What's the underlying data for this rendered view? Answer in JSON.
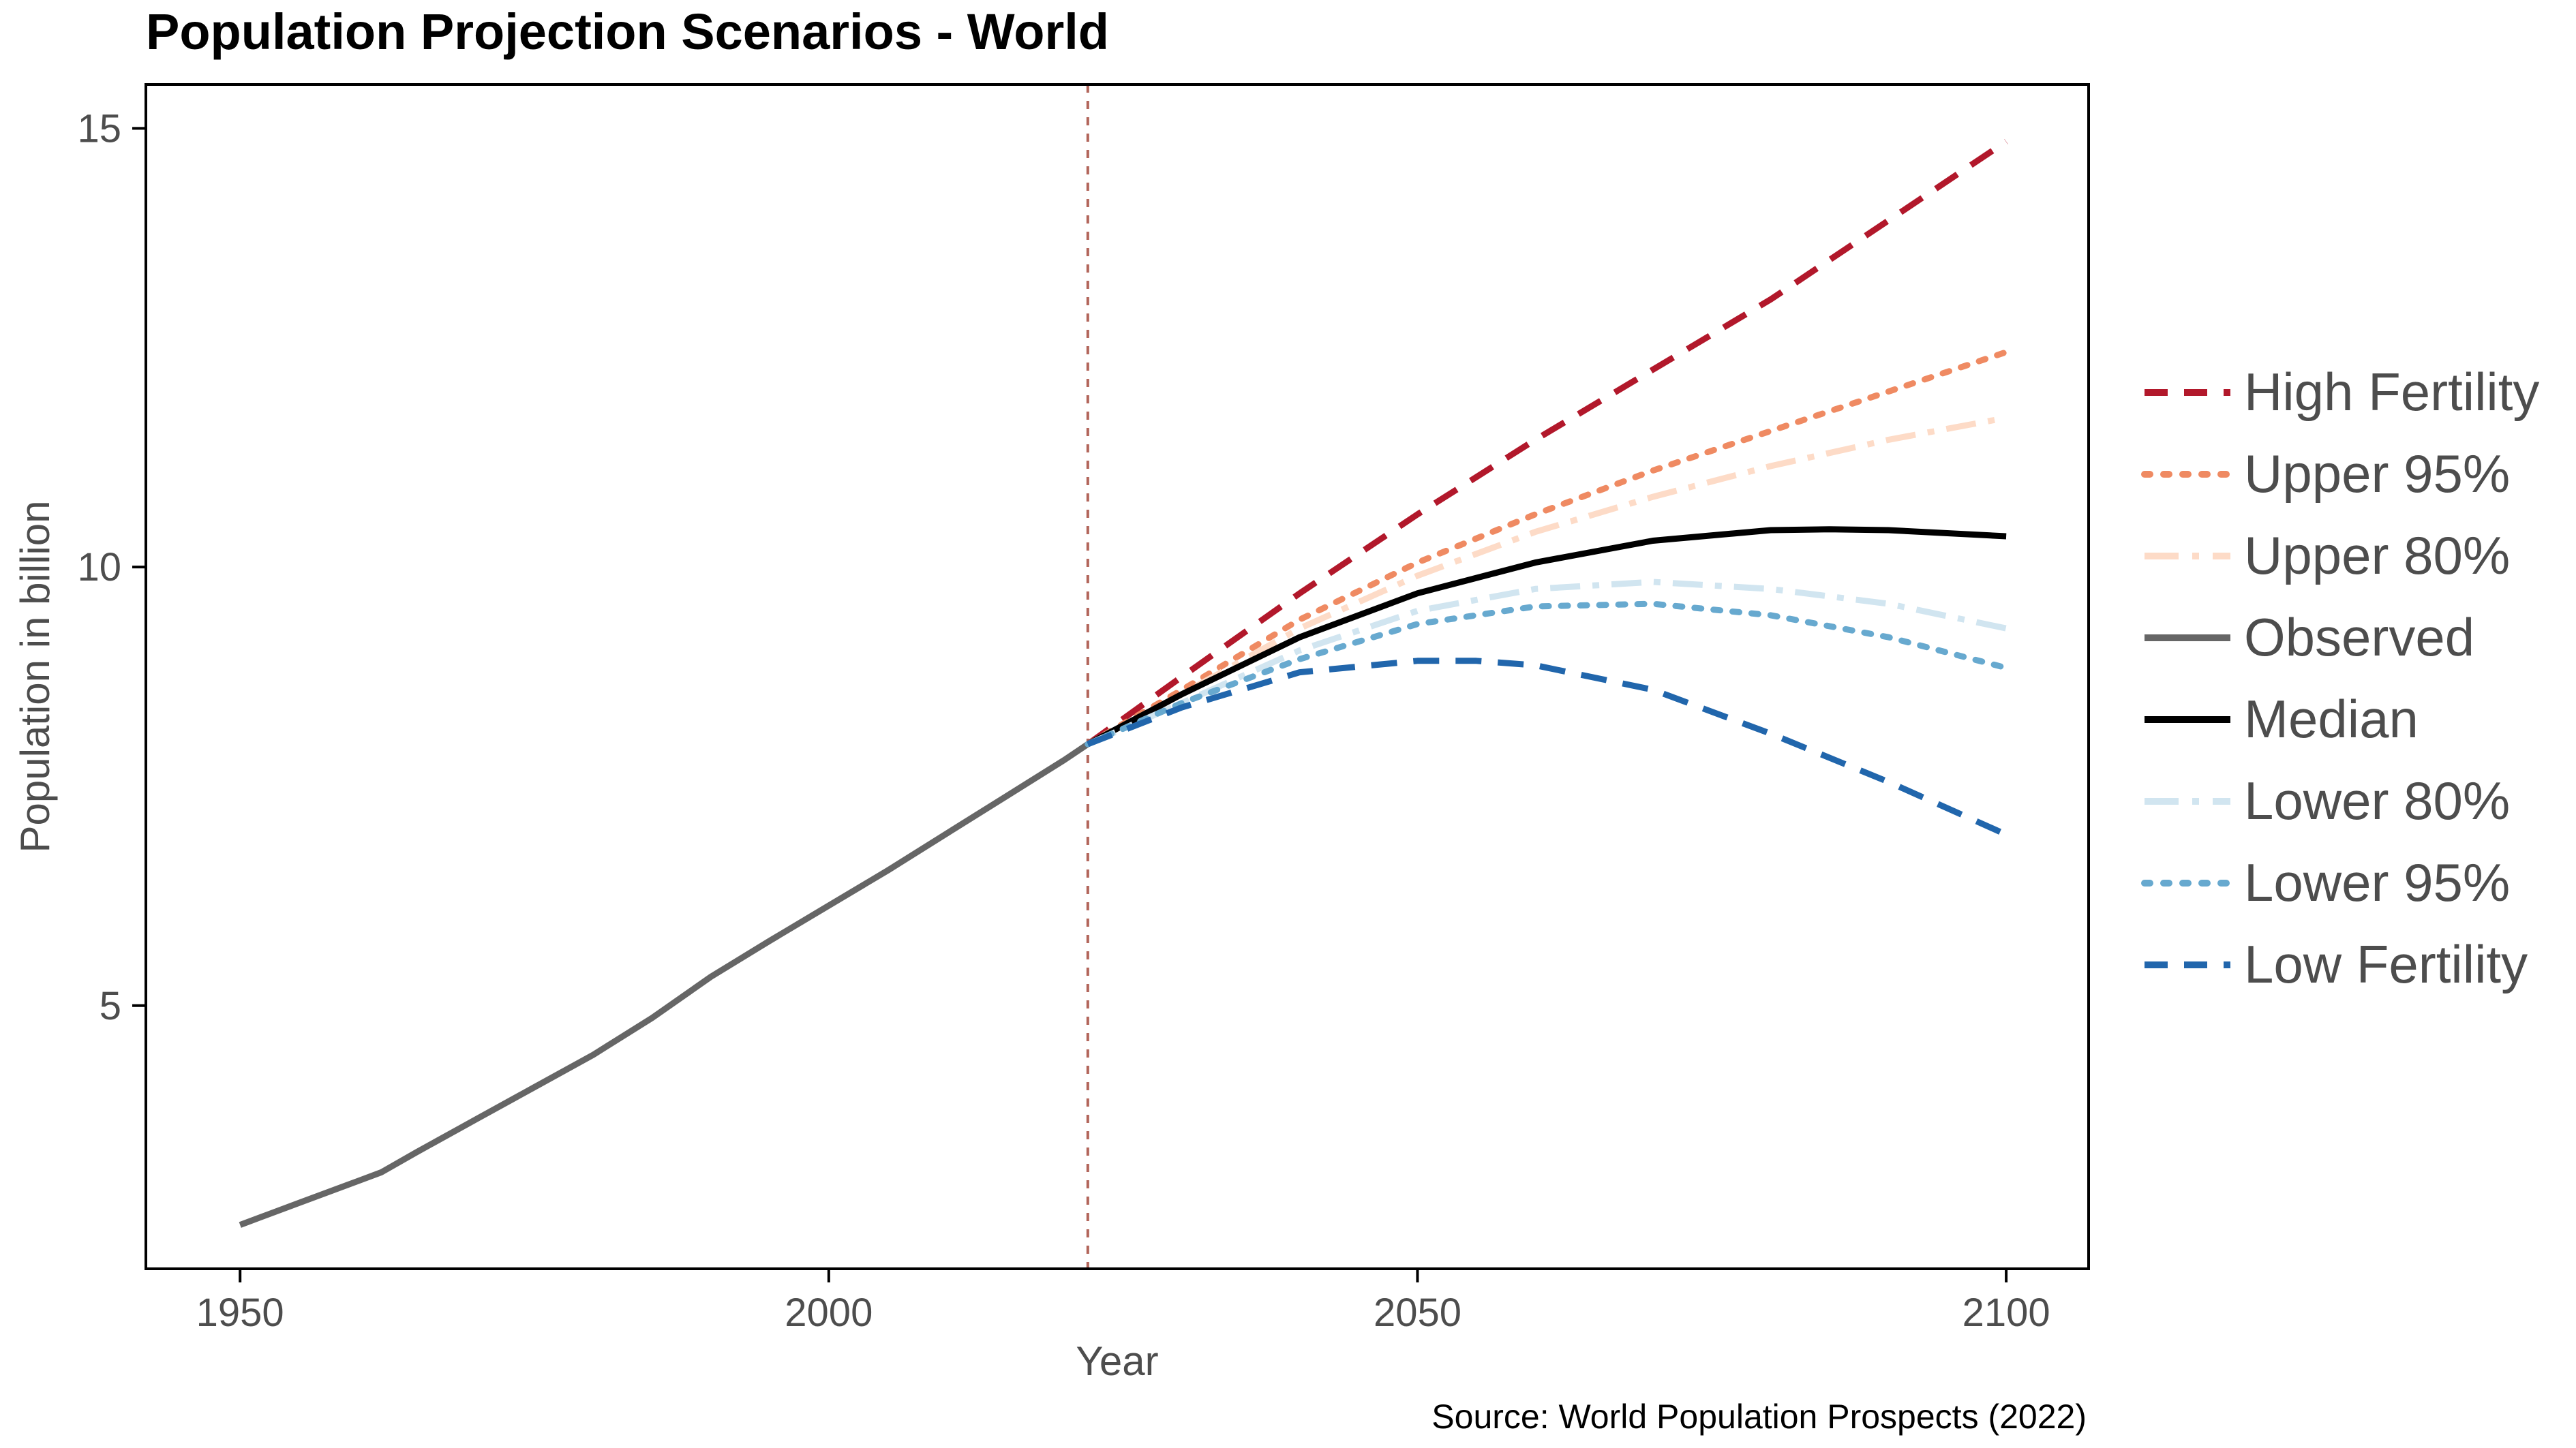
{
  "chart_data": {
    "type": "line",
    "title": "Population Projection Scenarios - World",
    "xlabel": "Year",
    "ylabel": "Population in billion",
    "xlim": [
      1942,
      2107
    ],
    "ylim": [
      2.0,
      15.5
    ],
    "xticks": [
      1950,
      2000,
      2050,
      2100
    ],
    "yticks": [
      5,
      10,
      15
    ],
    "grid": false,
    "legend_position": "right",
    "annotation": "Source: World Population Prospects (2022)",
    "reference_line": {
      "x": 2022,
      "color": "#b2655a"
    },
    "series": [
      {
        "name": "High Fertility",
        "color": "#b2182b",
        "dash": "dashed",
        "x": [
          2022,
          2030,
          2040,
          2050,
          2060,
          2070,
          2080,
          2090,
          2100
        ],
        "y": [
          7.98,
          8.75,
          9.7,
          10.6,
          11.45,
          12.25,
          13.05,
          13.95,
          14.85
        ]
      },
      {
        "name": "Upper 95%",
        "color": "#ef8a62",
        "dash": "dotted",
        "x": [
          2022,
          2030,
          2040,
          2050,
          2060,
          2070,
          2080,
          2090,
          2100
        ],
        "y": [
          7.98,
          8.6,
          9.4,
          10.05,
          10.6,
          11.1,
          11.55,
          12.0,
          12.45
        ]
      },
      {
        "name": "Upper 80%",
        "color": "#fddbc7",
        "dash": "dashdot",
        "x": [
          2022,
          2030,
          2040,
          2050,
          2060,
          2070,
          2080,
          2090,
          2100
        ],
        "y": [
          7.98,
          8.55,
          9.3,
          9.9,
          10.4,
          10.8,
          11.15,
          11.45,
          11.7
        ]
      },
      {
        "name": "Observed",
        "color": "#666666",
        "dash": "solid",
        "x": [
          1950,
          1955,
          1960,
          1962,
          1965,
          1970,
          1975,
          1980,
          1985,
          1990,
          1995,
          2000,
          2005,
          2010,
          2015,
          2020,
          2022
        ],
        "y": [
          2.5,
          2.75,
          3.0,
          3.1,
          3.33,
          3.7,
          4.07,
          4.44,
          4.86,
          5.33,
          5.74,
          6.14,
          6.54,
          6.96,
          7.38,
          7.8,
          7.98
        ]
      },
      {
        "name": "Median",
        "color": "#000000",
        "dash": "solid",
        "x": [
          2022,
          2030,
          2040,
          2050,
          2060,
          2070,
          2080,
          2085,
          2090,
          2100
        ],
        "y": [
          7.98,
          8.55,
          9.2,
          9.7,
          10.05,
          10.3,
          10.42,
          10.43,
          10.42,
          10.35
        ]
      },
      {
        "name": "Lower 80%",
        "color": "#d1e5f0",
        "dash": "dashdot",
        "x": [
          2022,
          2030,
          2040,
          2050,
          2060,
          2070,
          2080,
          2090,
          2100
        ],
        "y": [
          7.98,
          8.45,
          9.05,
          9.5,
          9.75,
          9.83,
          9.75,
          9.58,
          9.3
        ]
      },
      {
        "name": "Lower 95%",
        "color": "#67a9cf",
        "dash": "dotted",
        "x": [
          2022,
          2030,
          2040,
          2050,
          2060,
          2070,
          2080,
          2090,
          2100
        ],
        "y": [
          7.98,
          8.45,
          8.95,
          9.35,
          9.55,
          9.58,
          9.45,
          9.2,
          8.85
        ]
      },
      {
        "name": "Low Fertility",
        "color": "#2166ac",
        "dash": "dashed",
        "x": [
          2022,
          2030,
          2040,
          2050,
          2055,
          2060,
          2070,
          2080,
          2090,
          2100
        ],
        "y": [
          7.98,
          8.4,
          8.8,
          8.93,
          8.93,
          8.88,
          8.6,
          8.1,
          7.55,
          6.95
        ]
      }
    ]
  }
}
